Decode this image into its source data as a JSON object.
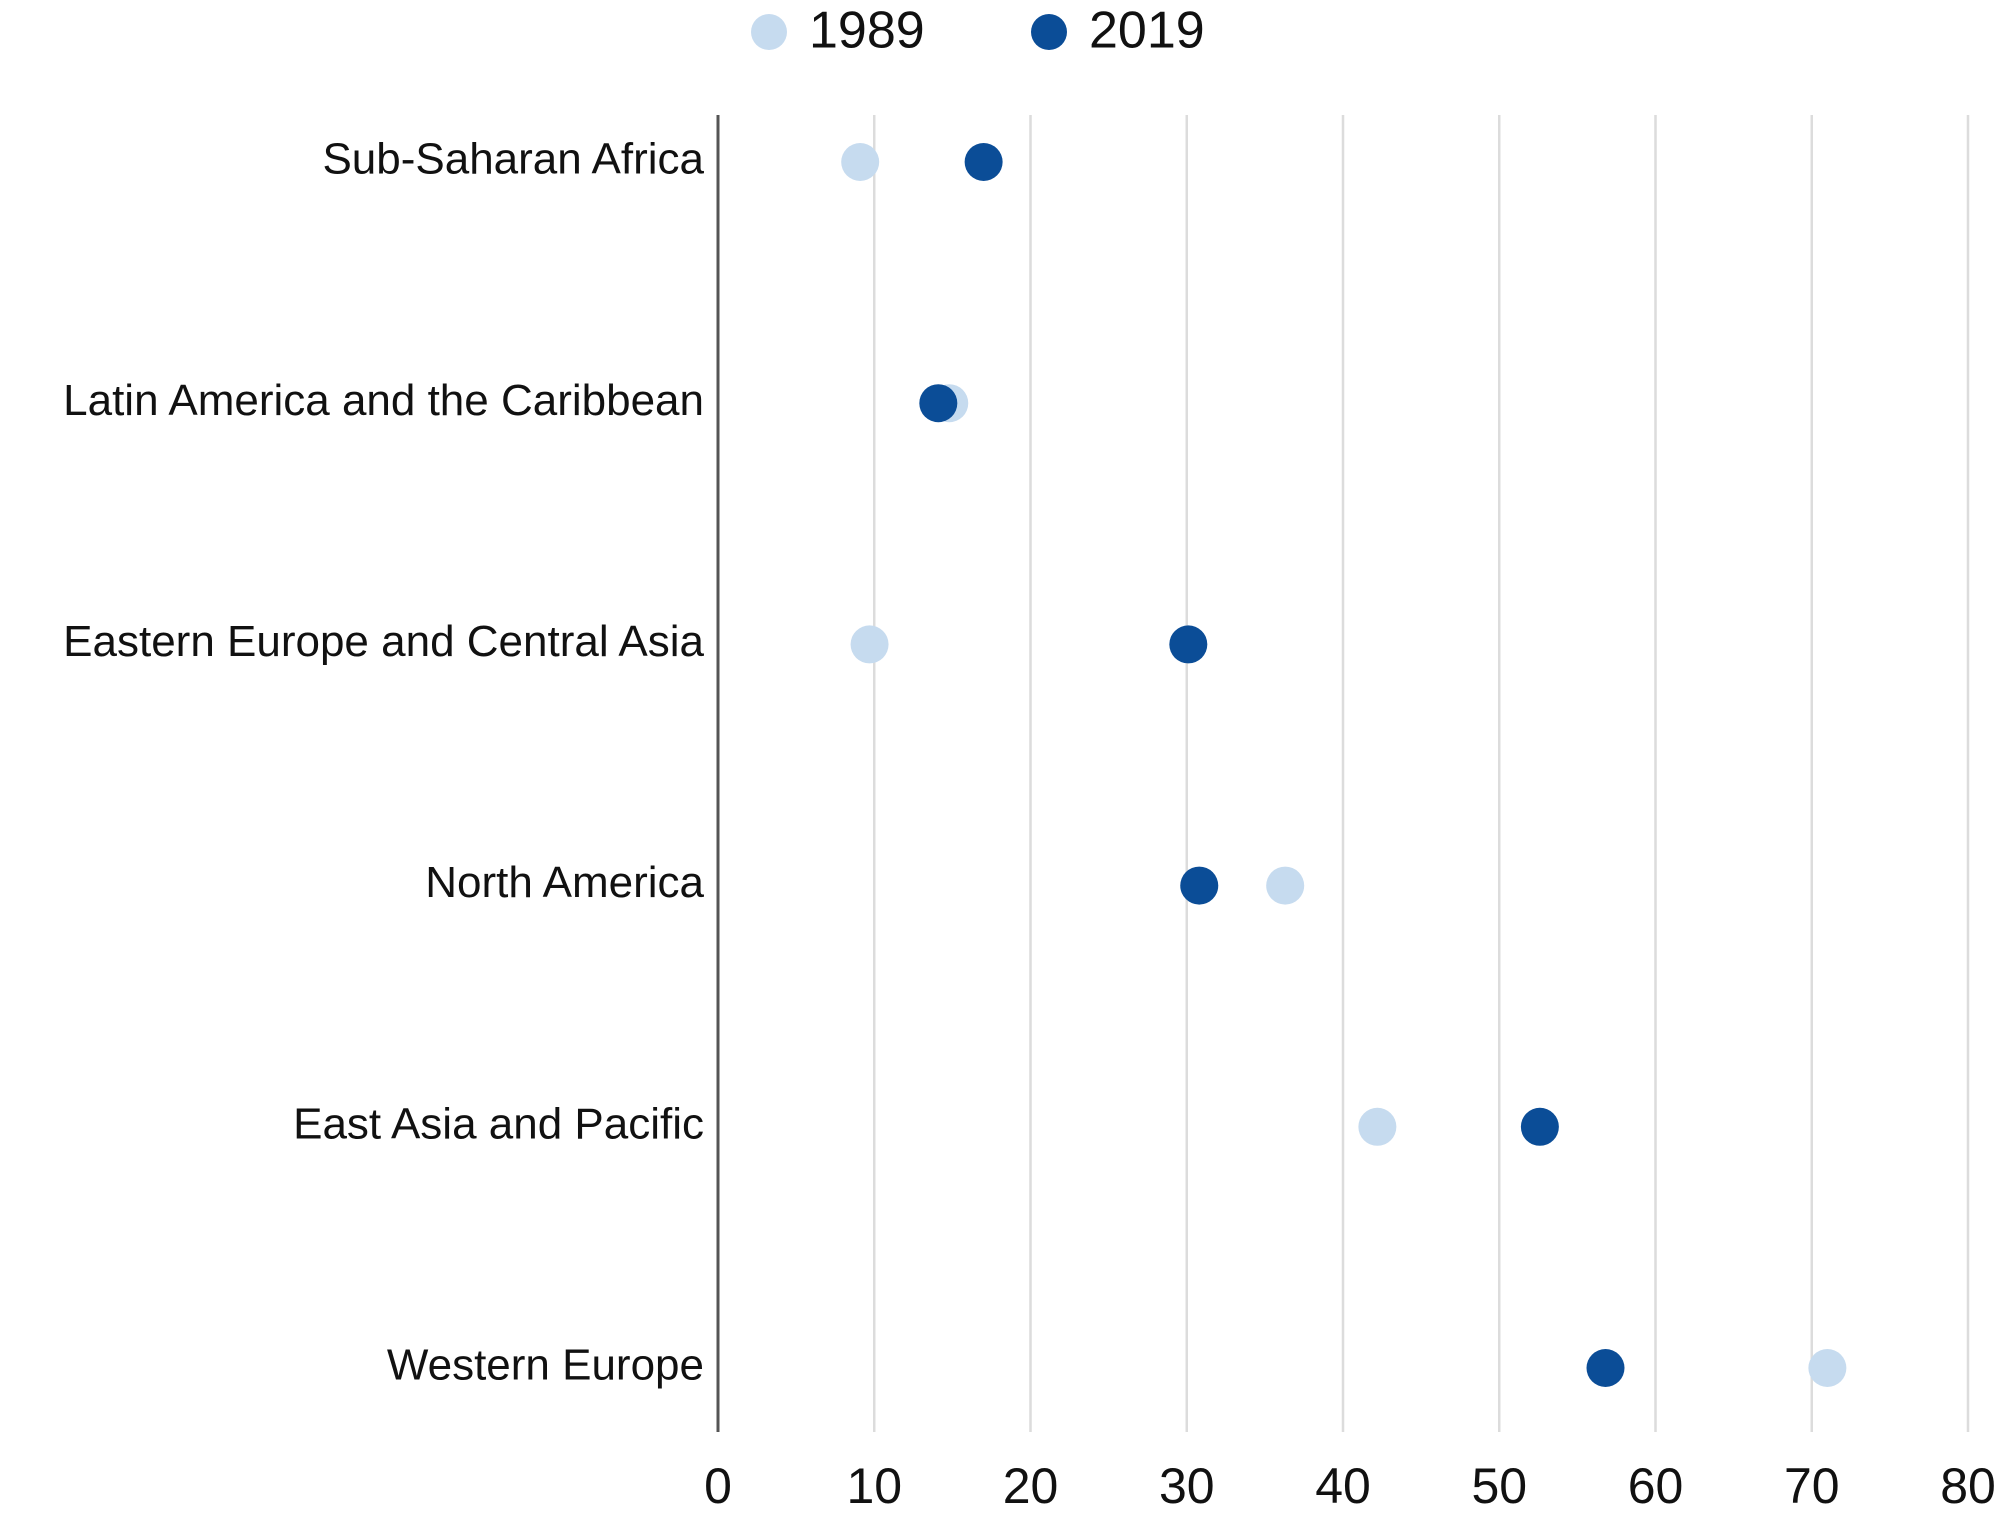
{
  "chart_data": {
    "type": "dot",
    "categories": [
      "Sub-Saharan Africa",
      "Latin America and the Caribbean",
      "Eastern Europe and Central Asia",
      "North America",
      "East Asia and Pacific",
      "Western Europe"
    ],
    "series": [
      {
        "name": "1989",
        "color": "#c6dbef",
        "values": [
          9.1,
          14.8,
          9.7,
          36.3,
          42.2,
          71.0
        ]
      },
      {
        "name": "2019",
        "color": "#0b4d97",
        "values": [
          17.0,
          14.1,
          30.1,
          30.8,
          52.6,
          56.8
        ]
      }
    ],
    "xlim": [
      0,
      80
    ],
    "xticks": [
      0,
      10,
      20,
      30,
      40,
      50,
      60,
      70,
      80
    ],
    "grid": true,
    "legend": "top"
  }
}
